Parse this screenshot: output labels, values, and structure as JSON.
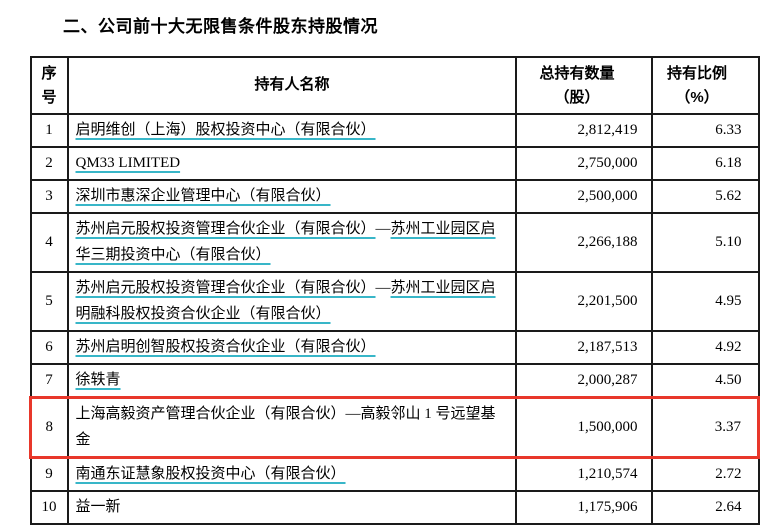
{
  "page": {
    "title": "二、公司前十大无限售条件股东持股情况"
  },
  "colors": {
    "underline": "#38b6c8",
    "highlight_border": "#e8372a",
    "table_border": "#1a1a1a"
  },
  "table": {
    "headers": [
      "序\n号",
      "持有人名称",
      "总持有数量\n（股）",
      "持有比例\n（%）"
    ],
    "rows": [
      {
        "no": "1",
        "name_parts": [
          {
            "text": "启明维创（上海）股权投资中心（有限合伙）",
            "underline": true
          }
        ],
        "quantity": "2,812,419",
        "percentage": "6.33",
        "highlighted": false
      },
      {
        "no": "2",
        "name_parts": [
          {
            "text": "QM33 LIMITED",
            "underline": true
          }
        ],
        "quantity": "2,750,000",
        "percentage": "6.18",
        "highlighted": false
      },
      {
        "no": "3",
        "name_parts": [
          {
            "text": "深圳市惠深企业管理中心（有限合伙）",
            "underline": true
          }
        ],
        "quantity": "2,500,000",
        "percentage": "5.62",
        "highlighted": false
      },
      {
        "no": "4",
        "name_parts": [
          {
            "text": "苏州启元股权投资管理合伙企业（有限合伙）",
            "underline": true
          },
          {
            "text": "—",
            "underline": false
          },
          {
            "text": "苏州工业园区启华三期投资中心（有限合伙）",
            "underline": true
          }
        ],
        "quantity": "2,266,188",
        "percentage": "5.10",
        "highlighted": false
      },
      {
        "no": "5",
        "name_parts": [
          {
            "text": "苏州启元股权投资管理合伙企业（有限合伙）",
            "underline": true
          },
          {
            "text": "—",
            "underline": false
          },
          {
            "text": "苏州工业园区启明融科股权投资合伙企业（有限合伙）",
            "underline": true
          }
        ],
        "quantity": "2,201,500",
        "percentage": "4.95",
        "highlighted": false
      },
      {
        "no": "6",
        "name_parts": [
          {
            "text": "苏州启明创智股权投资合伙企业（有限合伙）",
            "underline": true
          }
        ],
        "quantity": "2,187,513",
        "percentage": "4.92",
        "highlighted": false
      },
      {
        "no": "7",
        "name_parts": [
          {
            "text": "徐轶青",
            "underline": true
          }
        ],
        "quantity": "2,000,287",
        "percentage": "4.50",
        "highlighted": false
      },
      {
        "no": "8",
        "name_parts": [
          {
            "text": "上海高毅资产管理合伙企业（有限合伙）—高毅邻山 1 号远望基金",
            "underline": false
          }
        ],
        "quantity": "1,500,000",
        "percentage": "3.37",
        "highlighted": true
      },
      {
        "no": "9",
        "name_parts": [
          {
            "text": "南通东证慧象股权投资中心（有限合伙）",
            "underline": true
          }
        ],
        "quantity": "1,210,574",
        "percentage": "2.72",
        "highlighted": false
      },
      {
        "no": "10",
        "name_parts": [
          {
            "text": "益一新",
            "underline": false
          }
        ],
        "quantity": "1,175,906",
        "percentage": "2.64",
        "highlighted": false
      }
    ]
  }
}
